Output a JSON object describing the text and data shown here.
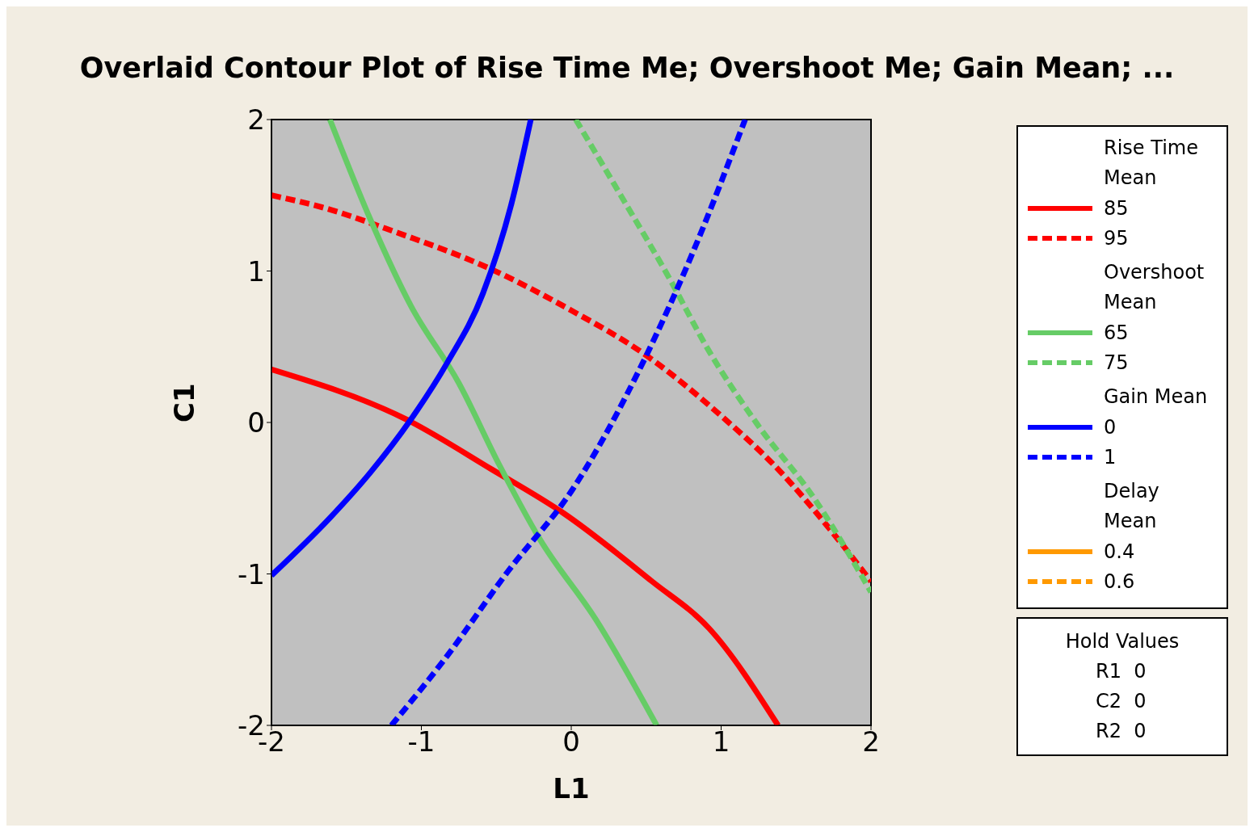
{
  "chart_data": {
    "type": "line",
    "title": "Overlaid Contour Plot of Rise Time Me; Overshoot Me; Gain Mean; ...",
    "xlabel": "L1",
    "ylabel": "C1",
    "xlim": [
      -2,
      2
    ],
    "ylim": [
      -2,
      2
    ],
    "xticks": [
      -2,
      -1,
      0,
      1,
      2
    ],
    "yticks": [
      -2,
      -1,
      0,
      1,
      2
    ],
    "marker": "none",
    "legend": "right",
    "annotations": [
      "Rise Time Mean",
      "Overshoot Mean",
      "Gain Mean",
      "Delay Mean",
      "Hold Values",
      "R1  0",
      "C2  0",
      "R2  0"
    ],
    "series": [
      {
        "name": "85",
        "color": "#ff0000",
        "line_style": "solid",
        "x": [
          -2,
          -1.1,
          -0.53,
          -0.05,
          0.54,
          0.92,
          1.38
        ],
        "values": [
          0.35,
          0.02,
          -0.31,
          -0.6,
          -1.05,
          -1.36,
          -2
        ]
      },
      {
        "name": "95",
        "color": "#ff0000",
        "line_style": "dashed",
        "x": [
          -2,
          -1.66,
          -1.18,
          -0.53,
          0,
          0.49,
          0.97,
          1.4,
          1.73,
          2
        ],
        "values": [
          1.5,
          1.42,
          1.26,
          1.01,
          0.74,
          0.45,
          0.07,
          -0.33,
          -0.71,
          -1.05
        ]
      },
      {
        "name": "65",
        "color": "#66cc66",
        "line_style": "solid",
        "x": [
          -1.61,
          -1.34,
          -1.07,
          -0.75,
          -0.48,
          -0.21,
          0.17,
          0.57
        ],
        "values": [
          2,
          1.34,
          0.77,
          0.26,
          -0.28,
          -0.77,
          -1.31,
          -2
        ]
      },
      {
        "name": "75",
        "color": "#66cc66",
        "line_style": "dashed",
        "x": [
          0.03,
          0.33,
          0.65,
          0.92,
          1.24,
          1.62,
          2
        ],
        "values": [
          2,
          1.5,
          0.96,
          0.47,
          -0.01,
          -0.5,
          -1.12
        ]
      },
      {
        "name": "0",
        "color": "#0000ff",
        "line_style": "solid",
        "x": [
          -2,
          -1.61,
          -1.34,
          -1.07,
          -0.83,
          -0.59,
          -0.4,
          -0.27
        ],
        "values": [
          -1.01,
          -0.63,
          -0.33,
          0.02,
          0.39,
          0.85,
          1.44,
          2
        ]
      },
      {
        "name": "1",
        "color": "#0000ff",
        "line_style": "dashed",
        "x": [
          -1.2,
          -0.85,
          -0.42,
          0.01,
          0.49,
          0.81,
          1.16
        ],
        "values": [
          -2,
          -1.57,
          -0.98,
          -0.44,
          0.42,
          1.12,
          2
        ]
      },
      {
        "name": "0.4",
        "color": "#ff9900",
        "line_style": "solid"
      },
      {
        "name": "0.6",
        "color": "#ff9900",
        "line_style": "dashed"
      }
    ]
  }
}
